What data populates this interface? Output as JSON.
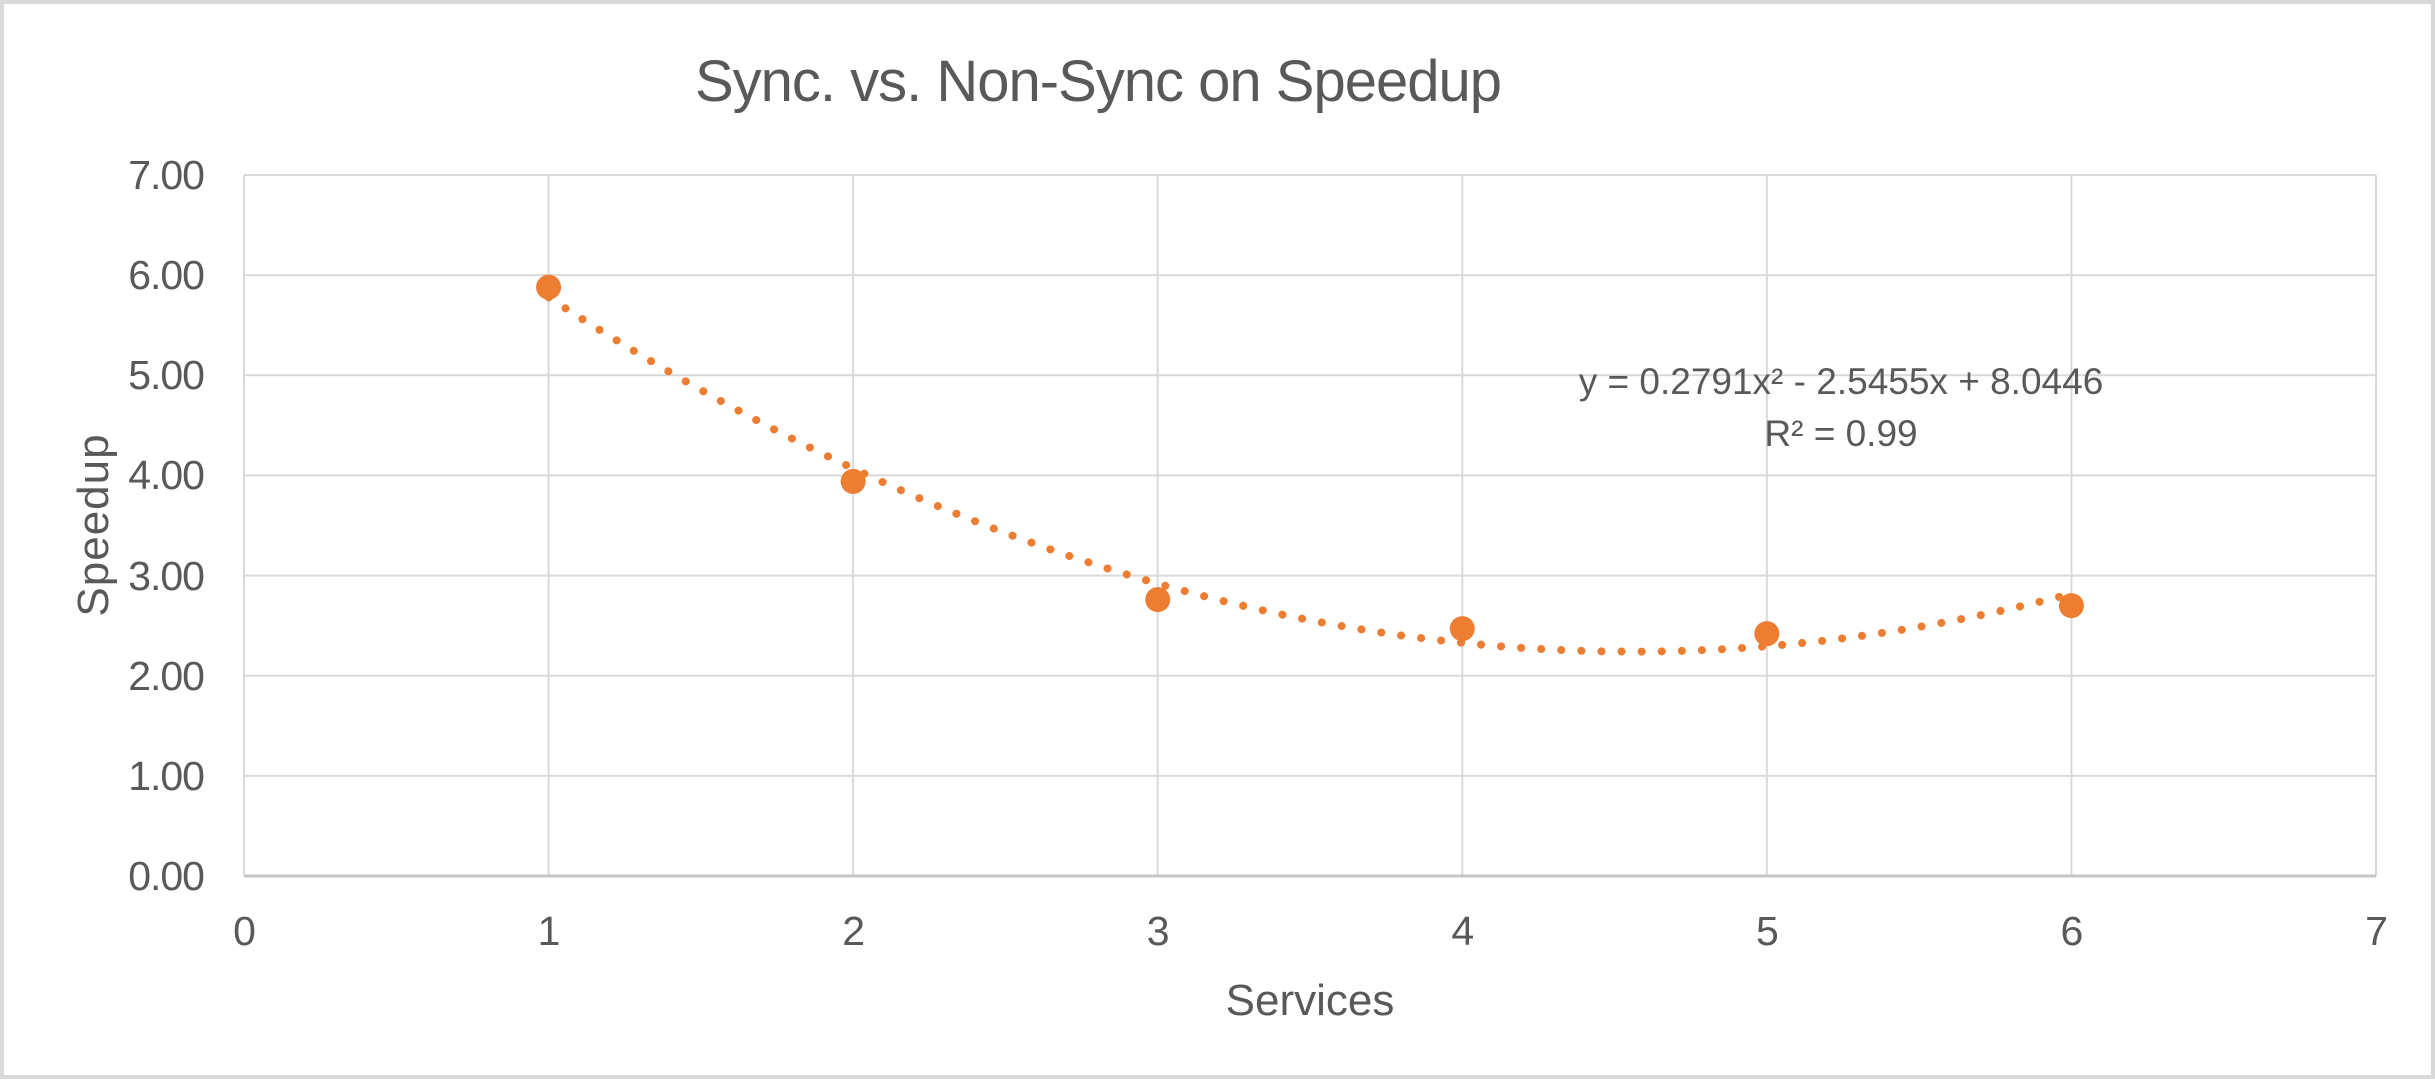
{
  "chart_data": {
    "type": "scatter",
    "title": "Sync. vs. Non-Sync on Speedup",
    "xlabel": "Services",
    "ylabel": "Speedup",
    "xlim": [
      0,
      7
    ],
    "ylim": [
      0,
      7
    ],
    "x_ticks": [
      "0",
      "1",
      "2",
      "3",
      "4",
      "5",
      "6",
      "7"
    ],
    "y_ticks": [
      "0.00",
      "1.00",
      "2.00",
      "3.00",
      "4.00",
      "5.00",
      "6.00",
      "7.00"
    ],
    "grid": true,
    "legend": "none",
    "series": [
      {
        "name": "Speedup",
        "marker": "circle",
        "marker_color": "#ED7D31",
        "points": [
          {
            "x": 1,
            "y": 5.88
          },
          {
            "x": 2,
            "y": 3.94
          },
          {
            "x": 3,
            "y": 2.76
          },
          {
            "x": 4,
            "y": 2.47
          },
          {
            "x": 5,
            "y": 2.42
          },
          {
            "x": 6,
            "y": 2.7
          }
        ]
      }
    ],
    "trendline": {
      "type": "polynomial",
      "order": 2,
      "coefficients": {
        "a": 0.2791,
        "b": -2.5455,
        "c": 8.0446
      },
      "domain": [
        1,
        6
      ],
      "style": "dotted",
      "color": "#ED7D31",
      "equation_label": "y = 0.2791x² - 2.5455x + 8.0446",
      "r2_label": "R² = 0.99"
    },
    "colors": {
      "series": "#ED7D31",
      "gridline": "#D9D9D9",
      "axis_line": "#C6C6C6",
      "text": "#595959",
      "background": "#FFFFFF",
      "border": "#D9D9D9"
    }
  }
}
